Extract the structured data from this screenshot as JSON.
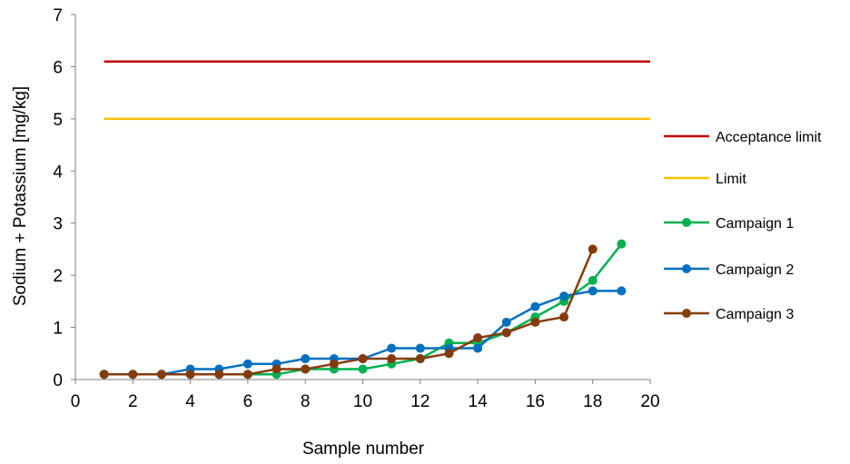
{
  "chart_data": {
    "type": "line",
    "title": "",
    "xlabel": "Sample number",
    "ylabel": "Sodium + Potassium [mg/kg]",
    "xlim": [
      0,
      20
    ],
    "ylim": [
      0,
      7
    ],
    "x_ticks": [
      0,
      2,
      4,
      6,
      8,
      10,
      12,
      14,
      16,
      18,
      20
    ],
    "y_ticks": [
      0,
      1,
      2,
      3,
      4,
      5,
      6,
      7
    ],
    "grid": false,
    "legend_position": "right",
    "series": [
      {
        "name": "Acceptance limit",
        "color": "#C00000",
        "markers": false,
        "x": [
          1,
          20
        ],
        "y": [
          6.1,
          6.1
        ]
      },
      {
        "name": "Limit",
        "color": "#FFC000",
        "markers": false,
        "x": [
          1,
          20
        ],
        "y": [
          5,
          5
        ]
      },
      {
        "name": "Campaign 1",
        "color": "#00B050",
        "markers": true,
        "x": [
          1,
          2,
          3,
          4,
          5,
          6,
          7,
          8,
          9,
          10,
          11,
          12,
          13,
          14,
          15,
          16,
          17,
          18,
          19
        ],
        "y": [
          0.1,
          0.1,
          0.1,
          0.1,
          0.1,
          0.1,
          0.1,
          0.2,
          0.2,
          0.2,
          0.3,
          0.4,
          0.7,
          0.7,
          0.9,
          1.2,
          1.5,
          1.9,
          2.6
        ]
      },
      {
        "name": "Campaign 2",
        "color": "#0070C0",
        "markers": true,
        "x": [
          1,
          2,
          3,
          4,
          5,
          6,
          7,
          8,
          9,
          10,
          11,
          12,
          13,
          14,
          15,
          16,
          17,
          18,
          19
        ],
        "y": [
          0.1,
          0.1,
          0.1,
          0.2,
          0.2,
          0.3,
          0.3,
          0.4,
          0.4,
          0.4,
          0.6,
          0.6,
          0.6,
          0.6,
          1.1,
          1.4,
          1.6,
          1.7,
          1.7
        ]
      },
      {
        "name": "Campaign 3",
        "color": "#843C0C",
        "markers": true,
        "x": [
          1,
          2,
          3,
          4,
          5,
          6,
          7,
          8,
          9,
          10,
          11,
          12,
          13,
          14,
          15,
          16,
          17,
          18
        ],
        "y": [
          0.1,
          0.1,
          0.1,
          0.1,
          0.1,
          0.1,
          0.2,
          0.2,
          0.3,
          0.4,
          0.4,
          0.4,
          0.5,
          0.8,
          0.9,
          1.1,
          1.2,
          2.5
        ]
      }
    ]
  }
}
